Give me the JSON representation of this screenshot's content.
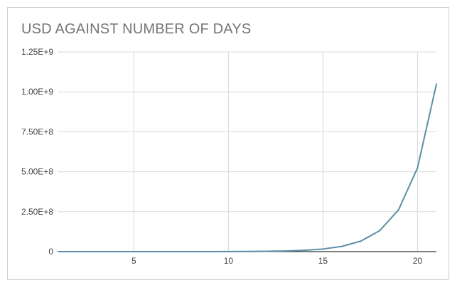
{
  "chart_data": {
    "type": "line",
    "title": "USD AGAINST NUMBER OF DAYS",
    "xlabel": "",
    "ylabel": "",
    "xlim": [
      1,
      21
    ],
    "ylim": [
      0,
      1250000000
    ],
    "x_ticks": [
      5,
      10,
      15,
      20
    ],
    "x_tick_labels": [
      "5",
      "10",
      "15",
      "20"
    ],
    "y_ticks": [
      0,
      250000000,
      500000000,
      750000000,
      1000000000,
      1250000000
    ],
    "y_tick_labels": [
      "0",
      "2.50E+8",
      "5.00E+8",
      "7.50E+8",
      "1.00E+9",
      "1.25E+9"
    ],
    "grid": true,
    "line_color": "#5b8fa8",
    "x": [
      1,
      2,
      3,
      4,
      5,
      6,
      7,
      8,
      9,
      10,
      11,
      12,
      13,
      14,
      15,
      16,
      17,
      18,
      19,
      20,
      21
    ],
    "series": [
      {
        "values": [
          1000,
          2000,
          4000,
          8000,
          16000,
          32000,
          64000,
          128000,
          256000,
          512000,
          1024000,
          2048000,
          4096000,
          8192000,
          16384000,
          32768000,
          65536000,
          131072000,
          262144000,
          524288000,
          1048576000
        ]
      }
    ]
  }
}
